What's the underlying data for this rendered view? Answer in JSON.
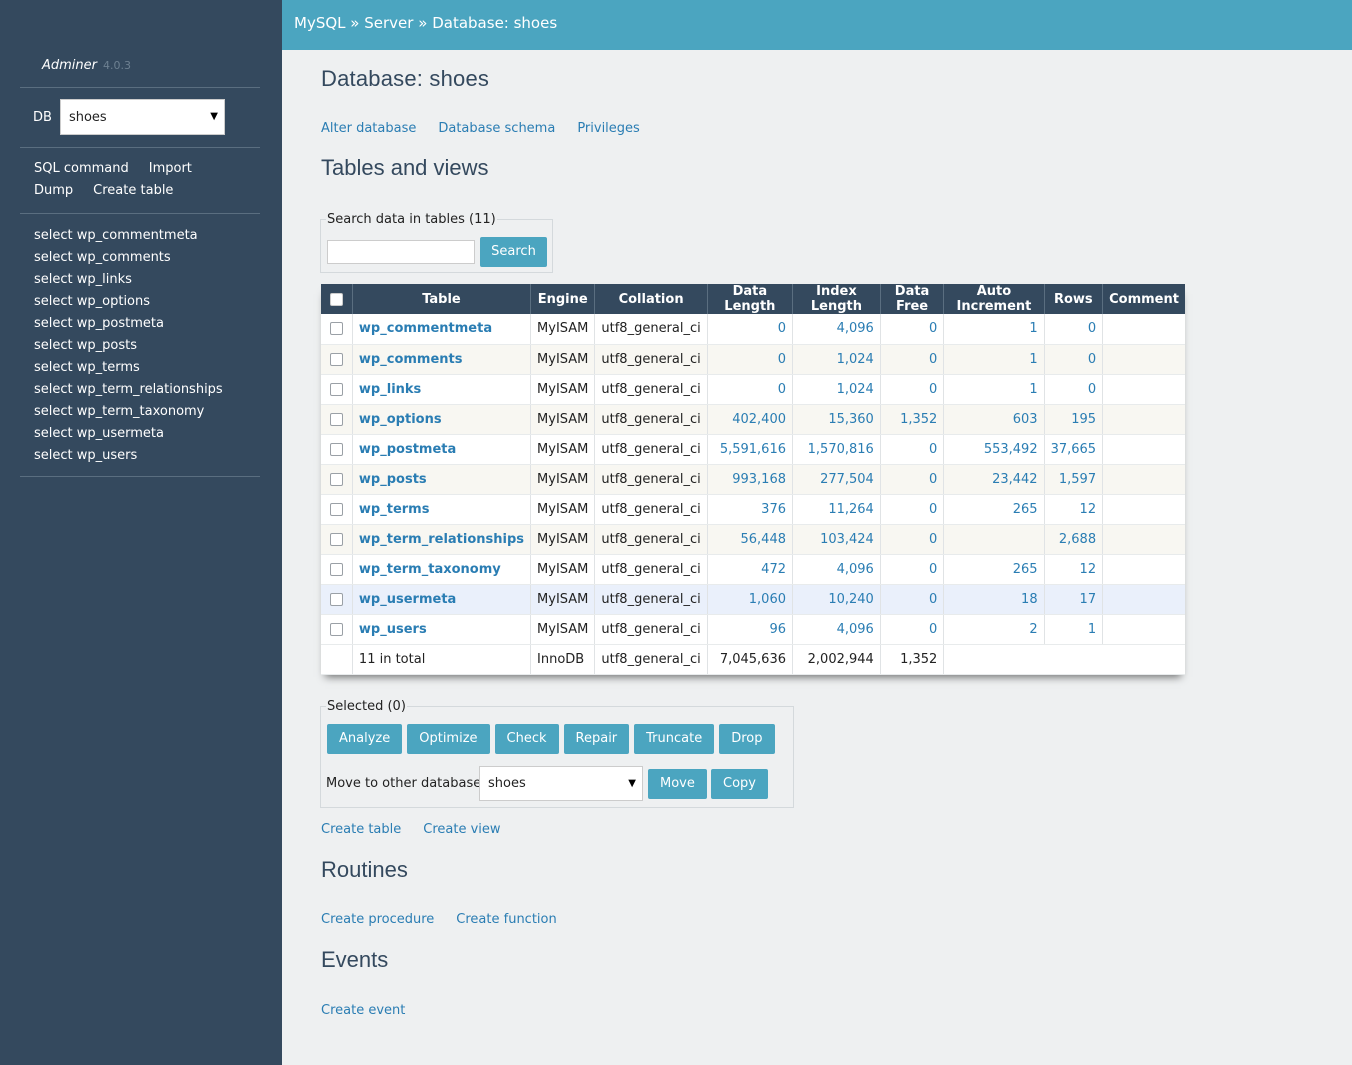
{
  "app": {
    "name": "Adminer",
    "version": "4.0.3"
  },
  "sidebar": {
    "db_label": "DB",
    "db_selected": "shoes",
    "links": [
      "SQL command",
      "Import",
      "Dump",
      "Create table"
    ],
    "tables": [
      "select wp_commentmeta",
      "select wp_comments",
      "select wp_links",
      "select wp_options",
      "select wp_postmeta",
      "select wp_posts",
      "select wp_terms",
      "select wp_term_relationships",
      "select wp_term_taxonomy",
      "select wp_usermeta",
      "select wp_users"
    ]
  },
  "breadcrumb": {
    "items": [
      "MySQL",
      "Server",
      "Database: shoes"
    ],
    "separator": "»"
  },
  "page": {
    "title": "Database: shoes",
    "actions": [
      "Alter database",
      "Database schema",
      "Privileges"
    ],
    "tables_heading": "Tables and views",
    "search": {
      "legend": "Search data in tables (11)",
      "value": "",
      "button": "Search"
    }
  },
  "table": {
    "headers": [
      "Table",
      "Engine",
      "Collation",
      "Data Length",
      "Index Length",
      "Data Free",
      "Auto Increment",
      "Rows",
      "Comment"
    ],
    "rows": [
      {
        "name": "wp_commentmeta",
        "engine": "MyISAM",
        "collation": "utf8_general_ci",
        "data_length": "0",
        "index_length": "4,096",
        "data_free": "0",
        "auto_increment": "1",
        "rows": "0",
        "comment": ""
      },
      {
        "name": "wp_comments",
        "engine": "MyISAM",
        "collation": "utf8_general_ci",
        "data_length": "0",
        "index_length": "1,024",
        "data_free": "0",
        "auto_increment": "1",
        "rows": "0",
        "comment": ""
      },
      {
        "name": "wp_links",
        "engine": "MyISAM",
        "collation": "utf8_general_ci",
        "data_length": "0",
        "index_length": "1,024",
        "data_free": "0",
        "auto_increment": "1",
        "rows": "0",
        "comment": ""
      },
      {
        "name": "wp_options",
        "engine": "MyISAM",
        "collation": "utf8_general_ci",
        "data_length": "402,400",
        "index_length": "15,360",
        "data_free": "1,352",
        "auto_increment": "603",
        "rows": "195",
        "comment": ""
      },
      {
        "name": "wp_postmeta",
        "engine": "MyISAM",
        "collation": "utf8_general_ci",
        "data_length": "5,591,616",
        "index_length": "1,570,816",
        "data_free": "0",
        "auto_increment": "553,492",
        "rows": "37,665",
        "comment": ""
      },
      {
        "name": "wp_posts",
        "engine": "MyISAM",
        "collation": "utf8_general_ci",
        "data_length": "993,168",
        "index_length": "277,504",
        "data_free": "0",
        "auto_increment": "23,442",
        "rows": "1,597",
        "comment": ""
      },
      {
        "name": "wp_terms",
        "engine": "MyISAM",
        "collation": "utf8_general_ci",
        "data_length": "376",
        "index_length": "11,264",
        "data_free": "0",
        "auto_increment": "265",
        "rows": "12",
        "comment": ""
      },
      {
        "name": "wp_term_relationships",
        "engine": "MyISAM",
        "collation": "utf8_general_ci",
        "data_length": "56,448",
        "index_length": "103,424",
        "data_free": "0",
        "auto_increment": "",
        "rows": "2,688",
        "comment": ""
      },
      {
        "name": "wp_term_taxonomy",
        "engine": "MyISAM",
        "collation": "utf8_general_ci",
        "data_length": "472",
        "index_length": "4,096",
        "data_free": "0",
        "auto_increment": "265",
        "rows": "12",
        "comment": ""
      },
      {
        "name": "wp_usermeta",
        "engine": "MyISAM",
        "collation": "utf8_general_ci",
        "data_length": "1,060",
        "index_length": "10,240",
        "data_free": "0",
        "auto_increment": "18",
        "rows": "17",
        "comment": ""
      },
      {
        "name": "wp_users",
        "engine": "MyISAM",
        "collation": "utf8_general_ci",
        "data_length": "96",
        "index_length": "4,096",
        "data_free": "0",
        "auto_increment": "2",
        "rows": "1",
        "comment": ""
      }
    ],
    "total": {
      "name": "11 in total",
      "engine": "InnoDB",
      "collation": "utf8_general_ci",
      "data_length": "7,045,636",
      "index_length": "2,002,944",
      "data_free": "1,352"
    }
  },
  "selected": {
    "legend": "Selected (0)",
    "buttons": [
      "Analyze",
      "Optimize",
      "Check",
      "Repair",
      "Truncate",
      "Drop"
    ],
    "move_label": "Move to other database:",
    "move_db": "shoes",
    "move_button": "Move",
    "copy_button": "Copy"
  },
  "table_actions": [
    "Create table",
    "Create view"
  ],
  "routines": {
    "heading": "Routines",
    "actions": [
      "Create procedure",
      "Create function"
    ]
  },
  "events": {
    "heading": "Events",
    "actions": [
      "Create event"
    ]
  },
  "colors": {
    "sidebar_bg": "#34495e",
    "topbar_bg": "#4ba5c0",
    "link": "#2a7db3",
    "button": "#4ba5c0"
  }
}
